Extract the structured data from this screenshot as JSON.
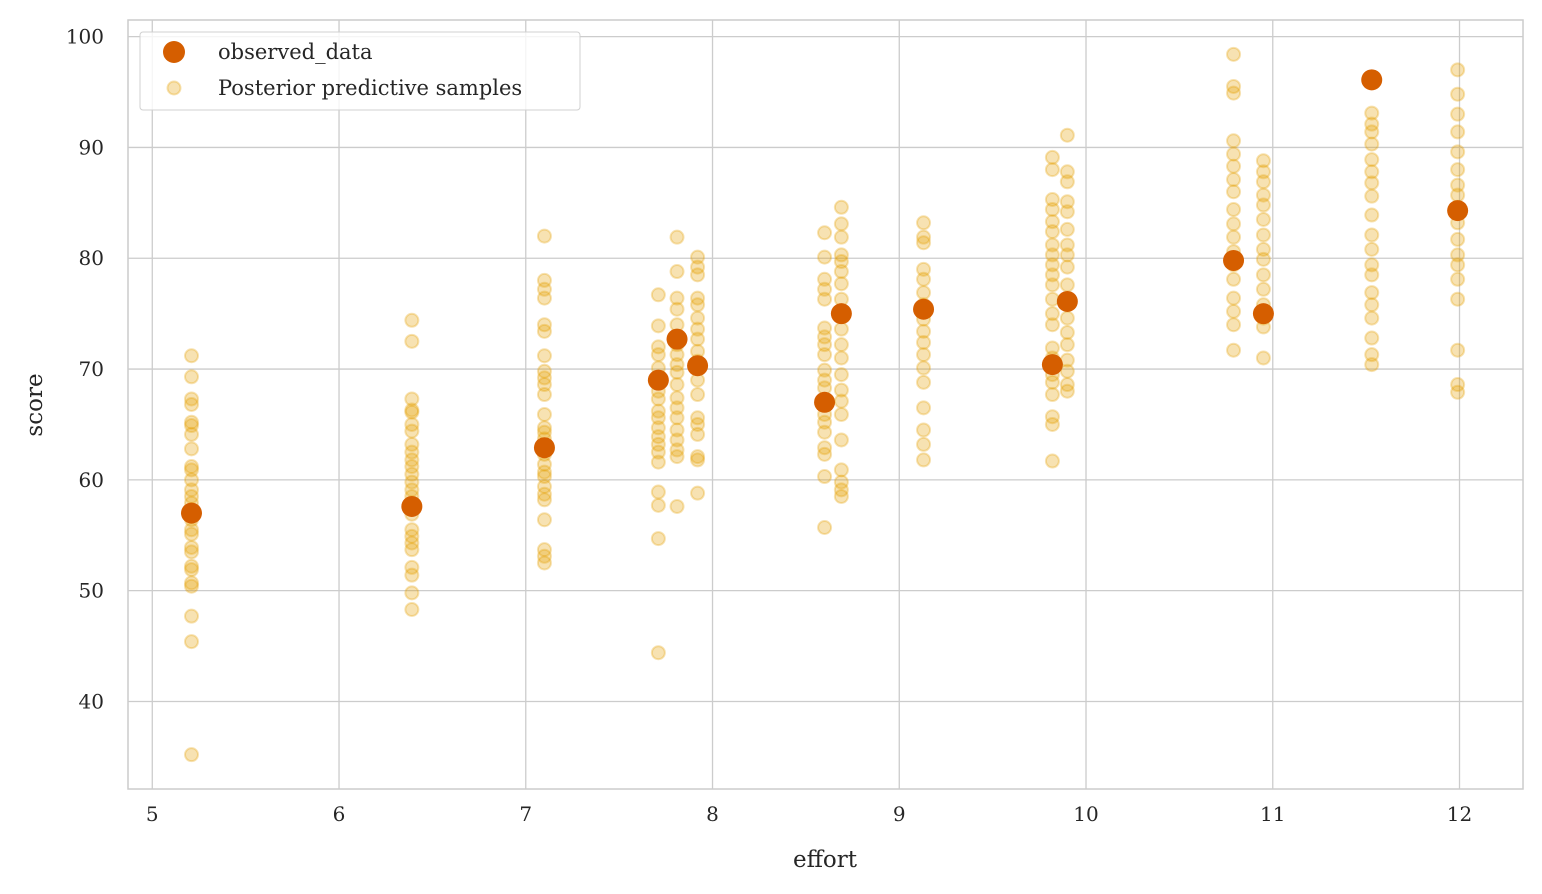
{
  "chart_data": {
    "type": "scatter",
    "title": "",
    "xlabel": "effort",
    "ylabel": "score",
    "xlim": [
      4.87,
      12.34
    ],
    "ylim": [
      32.1,
      101.5
    ],
    "xticks": [
      5,
      6,
      7,
      8,
      9,
      10,
      11,
      12
    ],
    "yticks": [
      40,
      50,
      60,
      70,
      80,
      90,
      100
    ],
    "grid": true,
    "legend_placement": "top-left",
    "series": [
      {
        "name": "observed_data",
        "color": "#D55E00",
        "alpha": 1,
        "points": [
          [
            5.21,
            57.0
          ],
          [
            6.39,
            57.6
          ],
          [
            7.1,
            62.9
          ],
          [
            7.71,
            69.0
          ],
          [
            7.81,
            72.7
          ],
          [
            7.92,
            70.3
          ],
          [
            8.6,
            67.0
          ],
          [
            8.69,
            75.0
          ],
          [
            9.13,
            75.4
          ],
          [
            9.82,
            70.4
          ],
          [
            9.9,
            76.1
          ],
          [
            10.79,
            79.8
          ],
          [
            10.95,
            75.0
          ],
          [
            11.53,
            96.1
          ],
          [
            11.99,
            84.3
          ]
        ]
      },
      {
        "name": "Posterior predictive samples",
        "color": "#E69F00",
        "alpha": 0.3,
        "groups": [
          {
            "x": 5.21,
            "y": [
              71.2,
              69.3,
              67.3,
              66.8,
              65.2,
              64.9,
              64.1,
              62.8,
              61.2,
              60.9,
              60.0,
              59.1,
              58.5,
              57.9,
              57.3,
              56.4,
              55.5,
              55.1,
              53.9,
              53.5,
              52.2,
              51.9,
              50.7,
              50.4,
              47.7,
              45.4,
              35.2
            ]
          },
          {
            "x": 6.39,
            "y": [
              74.4,
              72.5,
              67.3,
              66.3,
              66.1,
              65.0,
              64.4,
              63.2,
              62.5,
              61.8,
              61.2,
              60.5,
              59.8,
              59.1,
              58.5,
              57.9,
              56.9,
              55.5,
              54.9,
              54.3,
              53.7,
              52.1,
              51.4,
              49.8,
              48.3
            ]
          },
          {
            "x": 7.1,
            "y": [
              82.0,
              78.0,
              77.2,
              76.4,
              74.0,
              73.4,
              71.2,
              69.8,
              69.2,
              68.6,
              67.7,
              65.9,
              64.7,
              64.3,
              63.7,
              62.3,
              61.4,
              60.7,
              60.3,
              59.4,
              58.7,
              58.2,
              56.4,
              53.7,
              53.1,
              52.5
            ]
          },
          {
            "x": 7.71,
            "y": [
              76.7,
              73.9,
              72.0,
              71.3,
              70.1,
              69.0,
              68.0,
              67.3,
              66.2,
              65.6,
              64.7,
              63.9,
              63.2,
              62.5,
              61.6,
              58.9,
              57.7,
              54.7,
              44.4
            ]
          },
          {
            "x": 7.81,
            "y": [
              81.9,
              78.8,
              76.4,
              75.4,
              74.0,
              72.2,
              71.3,
              70.4,
              69.7,
              68.6,
              67.4,
              66.5,
              65.6,
              64.5,
              63.6,
              62.7,
              62.1,
              57.6
            ]
          },
          {
            "x": 7.92,
            "y": [
              80.1,
              79.2,
              78.5,
              76.4,
              75.8,
              74.6,
              73.6,
              72.7,
              71.6,
              70.7,
              69.0,
              67.7,
              65.6,
              65.0,
              64.1,
              62.1,
              61.8,
              58.8
            ]
          },
          {
            "x": 8.6,
            "y": [
              82.3,
              80.1,
              78.1,
              77.2,
              76.3,
              73.7,
              72.9,
              72.2,
              71.3,
              69.9,
              69.0,
              68.3,
              66.8,
              65.9,
              65.2,
              64.3,
              62.9,
              62.3,
              60.3,
              55.7
            ]
          },
          {
            "x": 8.69,
            "y": [
              84.6,
              83.1,
              81.9,
              80.3,
              79.7,
              78.8,
              77.7,
              76.3,
              75.0,
              73.6,
              72.2,
              71.0,
              69.5,
              68.1,
              67.1,
              65.9,
              63.6,
              60.9,
              59.8,
              59.1,
              58.5
            ]
          },
          {
            "x": 9.13,
            "y": [
              83.2,
              81.9,
              81.4,
              79.0,
              78.1,
              76.9,
              75.8,
              74.5,
              73.4,
              72.4,
              71.3,
              70.1,
              68.8,
              66.5,
              64.5,
              63.2,
              61.8
            ]
          },
          {
            "x": 9.82,
            "y": [
              89.1,
              88.0,
              85.3,
              84.4,
              83.3,
              82.4,
              81.2,
              80.3,
              79.4,
              78.5,
              77.6,
              76.3,
              75.0,
              74.0,
              71.9,
              71.0,
              69.5,
              68.8,
              67.7,
              65.7,
              65.0,
              61.7
            ]
          },
          {
            "x": 9.9,
            "y": [
              91.1,
              87.8,
              86.9,
              85.1,
              84.2,
              82.6,
              81.2,
              80.3,
              79.2,
              77.6,
              76.3,
              74.6,
              73.3,
              72.2,
              70.8,
              69.8,
              68.6,
              68.0
            ]
          },
          {
            "x": 10.79,
            "y": [
              98.4,
              95.5,
              94.9,
              90.6,
              89.4,
              88.3,
              87.1,
              86.0,
              84.4,
              83.1,
              81.9,
              80.6,
              79.4,
              78.1,
              76.4,
              75.2,
              74.0,
              71.7
            ]
          },
          {
            "x": 10.95,
            "y": [
              88.8,
              87.8,
              86.9,
              85.7,
              84.8,
              83.5,
              82.1,
              80.8,
              79.9,
              78.5,
              77.2,
              75.8,
              74.6,
              73.8,
              71.0
            ]
          },
          {
            "x": 11.53,
            "y": [
              93.1,
              92.1,
              91.4,
              90.3,
              88.9,
              87.8,
              86.8,
              85.6,
              83.9,
              82.1,
              80.8,
              79.4,
              78.5,
              76.9,
              75.8,
              74.6,
              72.8,
              71.3,
              70.4
            ]
          },
          {
            "x": 11.99,
            "y": [
              97.0,
              94.8,
              93.0,
              91.4,
              89.6,
              88.0,
              86.6,
              85.7,
              84.6,
              83.2,
              81.7,
              80.3,
              79.4,
              78.1,
              76.3,
              71.7,
              68.6,
              67.9
            ]
          }
        ]
      }
    ]
  }
}
